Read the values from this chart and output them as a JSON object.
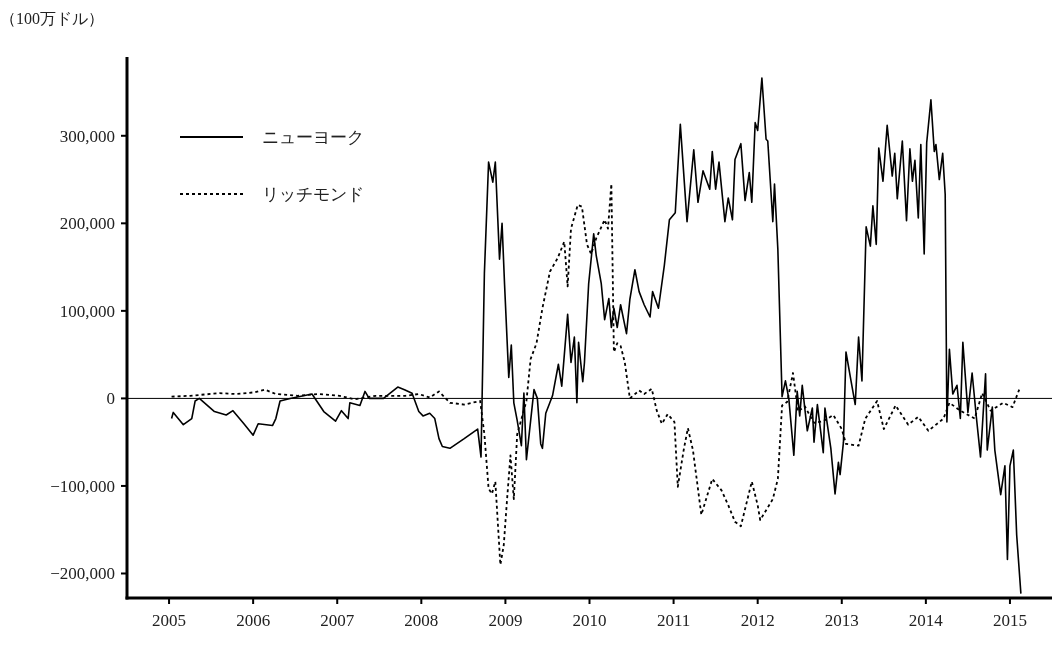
{
  "chart_data": {
    "type": "line",
    "ylabel": "（100万ドル）",
    "xlim": [
      2004.5,
      2015.5
    ],
    "ylim": [
      -228000,
      390000
    ],
    "xticks": [
      2005,
      2006,
      2007,
      2008,
      2009,
      2010,
      2011,
      2012,
      2013,
      2014,
      2015
    ],
    "yticks": [
      {
        "value": -200000,
        "label": "−200,000"
      },
      {
        "value": -100000,
        "label": "−100,000"
      },
      {
        "value": 0,
        "label": "0"
      },
      {
        "value": 100000,
        "label": "100,000"
      },
      {
        "value": 200000,
        "label": "200,000"
      },
      {
        "value": 300000,
        "label": "300,000"
      }
    ],
    "legend": "top left",
    "ref_lines": [
      {
        "axis": "y",
        "value": 0,
        "color": "#000000",
        "line_style": "solid"
      }
    ],
    "series": [
      {
        "name": "ニューヨーク",
        "color": "#000000",
        "line_style": "solid",
        "x": [
          2005.03,
          2005.05,
          2005.17,
          2005.27,
          2005.31,
          2005.36,
          2005.54,
          2005.68,
          2005.76,
          2005.89,
          2006.0,
          2006.06,
          2006.23,
          2006.27,
          2006.32,
          2006.44,
          2006.7,
          2006.84,
          2006.98,
          2007.05,
          2007.13,
          2007.15,
          2007.27,
          2007.33,
          2007.38,
          2007.55,
          2007.72,
          2007.8,
          2007.89,
          2007.97,
          2008.02,
          2008.1,
          2008.16,
          2008.21,
          2008.25,
          2008.34,
          2008.51,
          2008.67,
          2008.71,
          2008.75,
          2008.8,
          2008.85,
          2008.88,
          2008.93,
          2008.96,
          2008.99,
          2009.04,
          2009.07,
          2009.1,
          2009.14,
          2009.19,
          2009.22,
          2009.25,
          2009.34,
          2009.38,
          2009.42,
          2009.44,
          2009.48,
          2009.56,
          2009.63,
          2009.67,
          2009.74,
          2009.78,
          2009.82,
          2009.85,
          2009.87,
          2009.92,
          2009.94,
          2009.99,
          2010.05,
          2010.08,
          2010.14,
          2010.18,
          2010.23,
          2010.26,
          2010.29,
          2010.33,
          2010.37,
          2010.44,
          2010.48,
          2010.54,
          2010.59,
          2010.65,
          2010.72,
          2010.75,
          2010.82,
          2010.89,
          2010.95,
          2011.02,
          2011.08,
          2011.16,
          2011.24,
          2011.29,
          2011.35,
          2011.43,
          2011.46,
          2011.5,
          2011.54,
          2011.61,
          2011.65,
          2011.7,
          2011.73,
          2011.8,
          2011.85,
          2011.9,
          2011.93,
          2011.97,
          2012.0,
          2012.05,
          2012.1,
          2012.12,
          2012.18,
          2012.2,
          2012.24,
          2012.29,
          2012.33,
          2012.37,
          2012.43,
          2012.47,
          2012.5,
          2012.53,
          2012.59,
          2012.65,
          2012.67,
          2012.71,
          2012.78,
          2012.8,
          2012.87,
          2012.92,
          2012.96,
          2012.98,
          2013.02,
          2013.05,
          2013.11,
          2013.16,
          2013.2,
          2013.24,
          2013.29,
          2013.34,
          2013.37,
          2013.41,
          2013.44,
          2013.49,
          2013.54,
          2013.6,
          2013.63,
          2013.66,
          2013.72,
          2013.77,
          2013.81,
          2013.84,
          2013.87,
          2013.91,
          2013.94,
          2013.98,
          2014.01,
          2014.06,
          2014.1,
          2014.12,
          2014.16,
          2014.2,
          2014.23,
          2014.25,
          2014.28,
          2014.32,
          2014.37,
          2014.41,
          2014.44,
          2014.5,
          2014.55,
          2014.6,
          2014.65,
          2014.71,
          2014.73,
          2014.79,
          2014.82,
          2014.89,
          2014.94,
          2014.97,
          2015.0,
          2015.04,
          2015.08,
          2015.13
        ],
        "values": [
          -23000,
          -16000,
          -30000,
          -23000,
          -3000,
          0,
          -15000,
          -19000,
          -14000,
          -29000,
          -42000,
          -29000,
          -31000,
          -23000,
          -3000,
          0,
          5000,
          -15000,
          -26000,
          -14000,
          -23000,
          -5000,
          -8000,
          8000,
          0,
          0,
          13000,
          10000,
          6000,
          -15000,
          -20000,
          -17000,
          -23000,
          -46000,
          -55000,
          -57000,
          -46000,
          -35000,
          -67000,
          143000,
          270000,
          247000,
          270000,
          159000,
          200000,
          130000,
          24000,
          61000,
          -5000,
          -25000,
          -54000,
          6000,
          -70000,
          10000,
          0,
          -52000,
          -57000,
          -17000,
          3000,
          39000,
          14000,
          96000,
          41000,
          70000,
          -5000,
          64000,
          19000,
          41000,
          131000,
          188000,
          163000,
          131000,
          90000,
          114000,
          81000,
          103000,
          81000,
          107000,
          74000,
          113000,
          147000,
          122000,
          107000,
          93000,
          122000,
          103000,
          152000,
          204000,
          212000,
          313000,
          202000,
          284000,
          224000,
          260000,
          239000,
          282000,
          239000,
          270000,
          202000,
          229000,
          204000,
          273000,
          291000,
          226000,
          258000,
          224000,
          315000,
          306000,
          366000,
          296000,
          294000,
          202000,
          245000,
          170000,
          2000,
          20000,
          0,
          -65000,
          8000,
          -20000,
          15000,
          -37000,
          -11000,
          -50000,
          -7000,
          -62000,
          -11000,
          -57000,
          -109000,
          -73000,
          -87000,
          -50000,
          53000,
          20000,
          -7000,
          70000,
          20000,
          196000,
          174000,
          220000,
          176000,
          286000,
          248000,
          312000,
          254000,
          280000,
          228000,
          294000,
          203000,
          285000,
          248000,
          272000,
          206000,
          290000,
          165000,
          292000,
          341000,
          282000,
          290000,
          250000,
          280000,
          233000,
          -27000,
          56000,
          5000,
          15000,
          -23000,
          64000,
          -16000,
          29000,
          -21000,
          -67000,
          28000,
          -59000,
          -10000,
          -59000,
          -110000,
          -77000,
          -184000,
          -77000,
          -59000,
          -156000,
          -223000
        ]
      },
      {
        "name": "リッチモンド",
        "color": "#000000",
        "line_style": "dotted",
        "x": [
          2005.03,
          2005.25,
          2005.6,
          2005.8,
          2006.02,
          2006.14,
          2006.27,
          2006.53,
          2006.78,
          2007.03,
          2007.2,
          2007.46,
          2007.81,
          2007.97,
          2008.1,
          2008.21,
          2008.34,
          2008.51,
          2008.7,
          2008.75,
          2008.8,
          2008.84,
          2008.88,
          2008.94,
          2008.98,
          2009.02,
          2009.06,
          2009.1,
          2009.14,
          2009.25,
          2009.3,
          2009.37,
          2009.44,
          2009.53,
          2009.62,
          2009.7,
          2009.74,
          2009.78,
          2009.86,
          2009.91,
          2009.97,
          2010.02,
          2010.08,
          2010.18,
          2010.22,
          2010.26,
          2010.29,
          2010.33,
          2010.37,
          2010.42,
          2010.48,
          2010.59,
          2010.65,
          2010.74,
          2010.8,
          2010.86,
          2010.93,
          2011.01,
          2011.05,
          2011.12,
          2011.17,
          2011.23,
          2011.33,
          2011.46,
          2011.57,
          2011.65,
          2011.73,
          2011.8,
          2011.93,
          2012.0,
          2012.03,
          2012.18,
          2012.24,
          2012.29,
          2012.35,
          2012.42,
          2012.48,
          2012.56,
          2012.67,
          2012.78,
          2012.9,
          2013.0,
          2013.05,
          2013.2,
          2013.28,
          2013.42,
          2013.5,
          2013.64,
          2013.79,
          2013.91,
          2014.03,
          2014.21,
          2014.28,
          2014.41,
          2014.58,
          2014.67,
          2014.77,
          2014.92,
          2015.03,
          2015.11
        ],
        "values": [
          2000,
          3000,
          6000,
          5000,
          7000,
          10000,
          5000,
          3000,
          5000,
          3000,
          -1000,
          3000,
          3000,
          5000,
          1000,
          8000,
          -5000,
          -7000,
          -3000,
          -41000,
          -103000,
          -109000,
          -95000,
          -190000,
          -168000,
          -115000,
          -65000,
          -115000,
          -41000,
          -3000,
          45000,
          63000,
          103000,
          145000,
          160000,
          179000,
          128000,
          194000,
          221000,
          219000,
          176000,
          165000,
          183000,
          204000,
          194000,
          245000,
          53000,
          63000,
          60000,
          41000,
          0,
          9000,
          5000,
          11000,
          -14000,
          -29000,
          -18000,
          -27000,
          -101000,
          -59000,
          -34000,
          -59000,
          -133000,
          -92000,
          -105000,
          -122000,
          -141000,
          -146000,
          -95000,
          -122000,
          -139000,
          -115000,
          -92000,
          -8000,
          -4000,
          29000,
          -15000,
          -9000,
          -28000,
          -26000,
          -19000,
          -35000,
          -52000,
          -54000,
          -23000,
          -3000,
          -35000,
          -8000,
          -30000,
          -21000,
          -37000,
          -23000,
          -5000,
          -14000,
          -23000,
          6000,
          -14000,
          -5000,
          -10000,
          10000
        ]
      }
    ]
  }
}
